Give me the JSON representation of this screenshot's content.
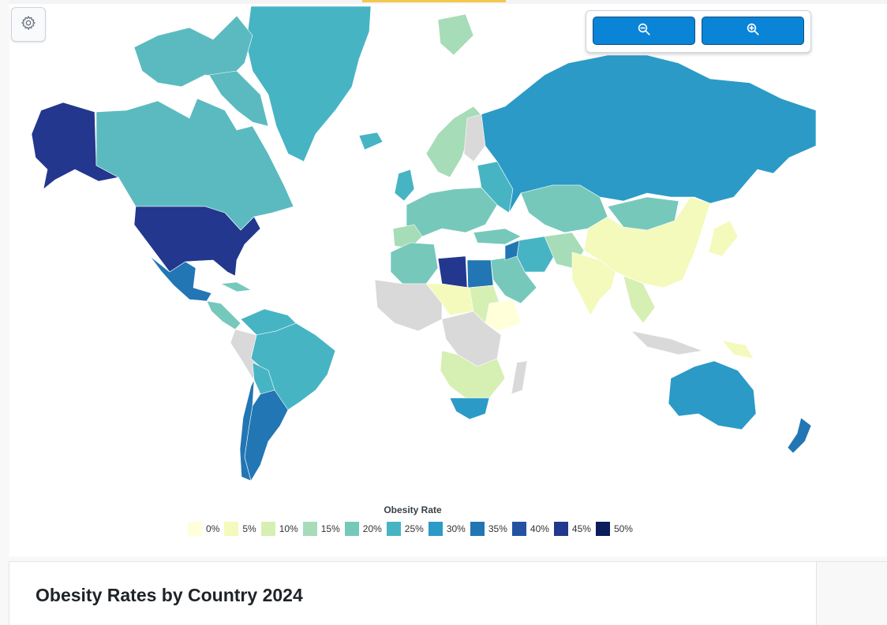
{
  "title": "Obesity Rates by Country 2024",
  "legend": {
    "title": "Obesity Rate",
    "items": [
      {
        "label": "0%",
        "color": "#ffffd9"
      },
      {
        "label": "5%",
        "color": "#f3fabc"
      },
      {
        "label": "10%",
        "color": "#d6efb3"
      },
      {
        "label": "15%",
        "color": "#a6dcb7"
      },
      {
        "label": "20%",
        "color": "#76c8bb"
      },
      {
        "label": "25%",
        "color": "#47b4c4"
      },
      {
        "label": "30%",
        "color": "#2b9ac6"
      },
      {
        "label": "35%",
        "color": "#2276b4"
      },
      {
        "label": "40%",
        "color": "#2452a1"
      },
      {
        "label": "45%",
        "color": "#22378d"
      },
      {
        "label": "50%",
        "color": "#0b1d5d"
      }
    ]
  },
  "controls": {
    "settings_icon": "gear-icon",
    "zoom_out_icon": "zoom-out-icon",
    "zoom_in_icon": "zoom-in-icon"
  },
  "no_data_color": "#d9d9d9"
}
